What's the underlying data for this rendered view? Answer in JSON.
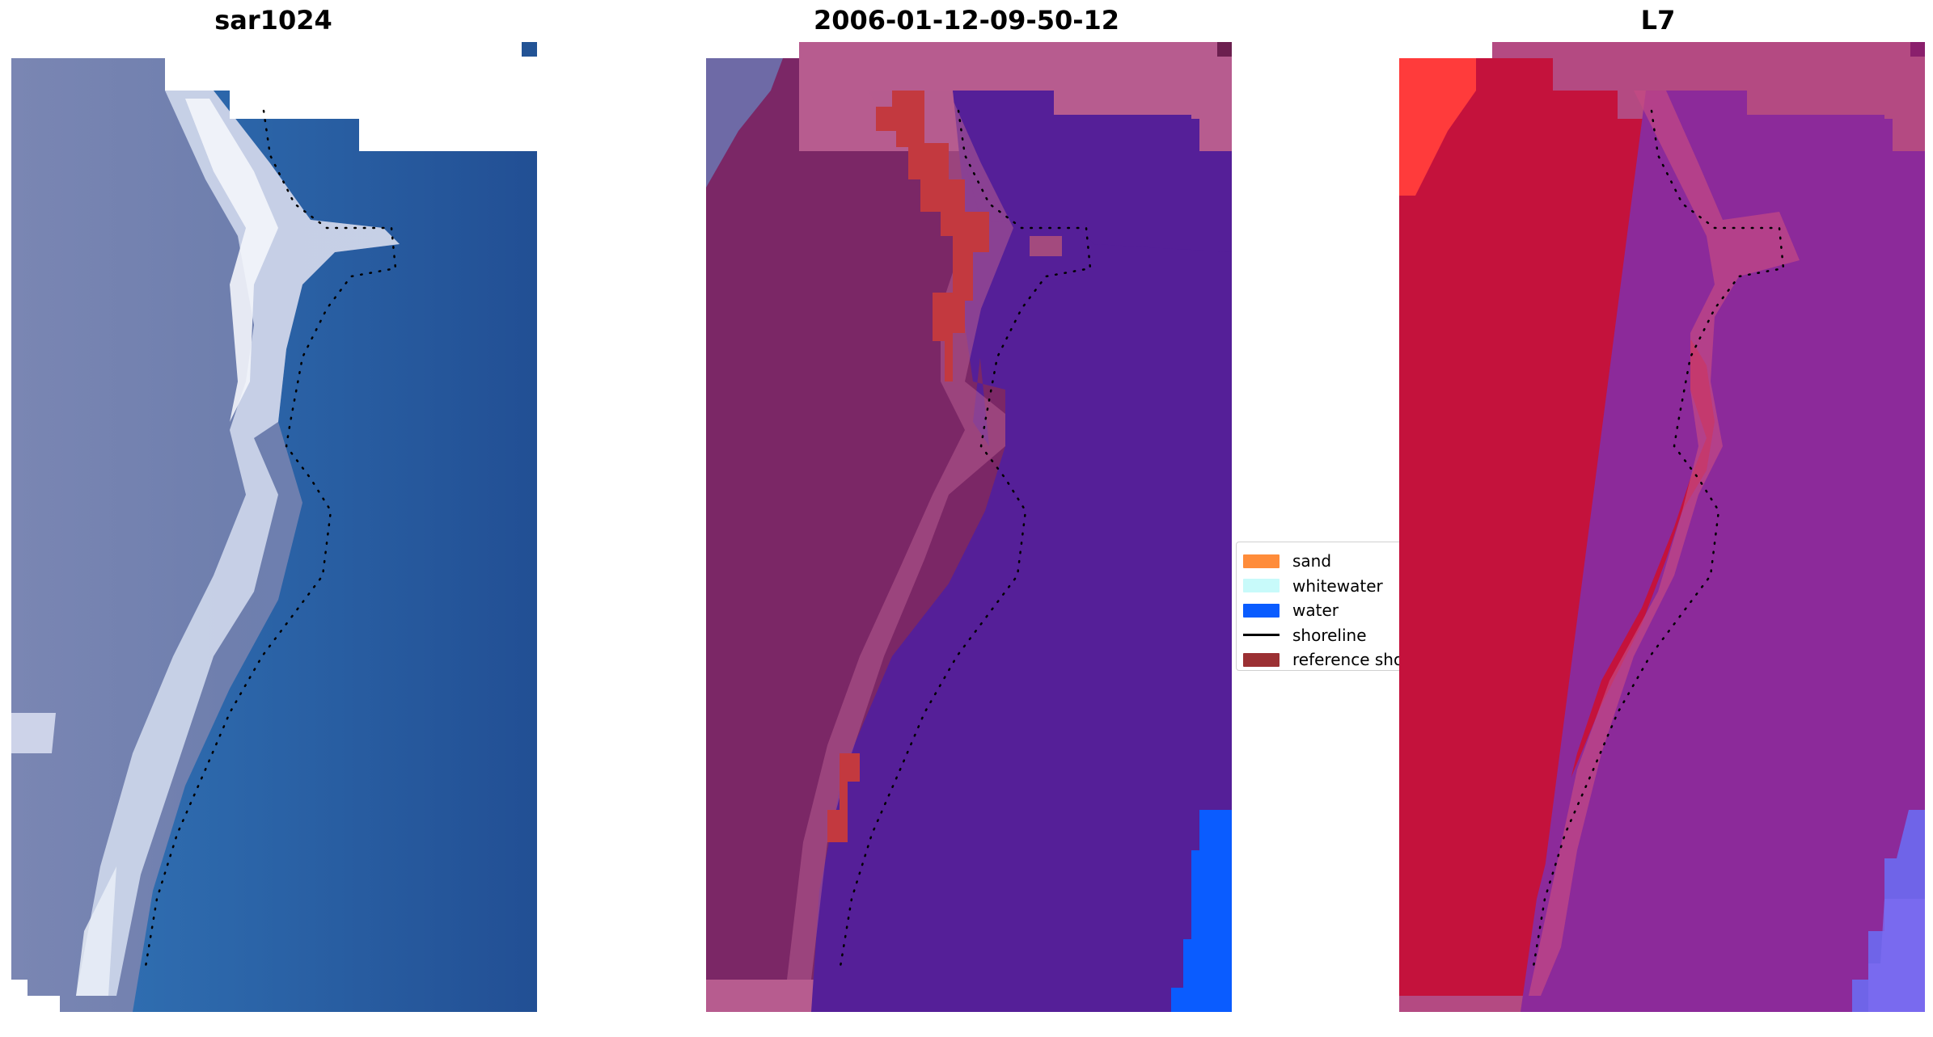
{
  "panels": [
    {
      "title": "sar1024"
    },
    {
      "title": "2006-01-12-09-50-12"
    },
    {
      "title": "L7"
    }
  ],
  "legend": [
    {
      "label": "sand",
      "color": "#ff8c3a"
    },
    {
      "label": "whitewater",
      "color": "#c8fafa"
    },
    {
      "label": "water",
      "color": "#0a5cff"
    },
    {
      "label": "shoreline",
      "color": "#000000",
      "kind": "line"
    },
    {
      "label": "reference shoreline",
      "color": "#9b3033"
    }
  ],
  "colors": {
    "rgb_land": "#6f7fae",
    "rgb_sand": "#e6ecf5",
    "rgb_water": "#2565aa",
    "class_land": "#7b2766",
    "class_water": "#551f98",
    "class_edge": "#b75c8f",
    "class_ref": "#c3393f",
    "class_blue": "#0a5cff",
    "l7_land": "#c4123c",
    "l7_water": "#8c2a9a",
    "l7_edge": "#b44a82"
  }
}
